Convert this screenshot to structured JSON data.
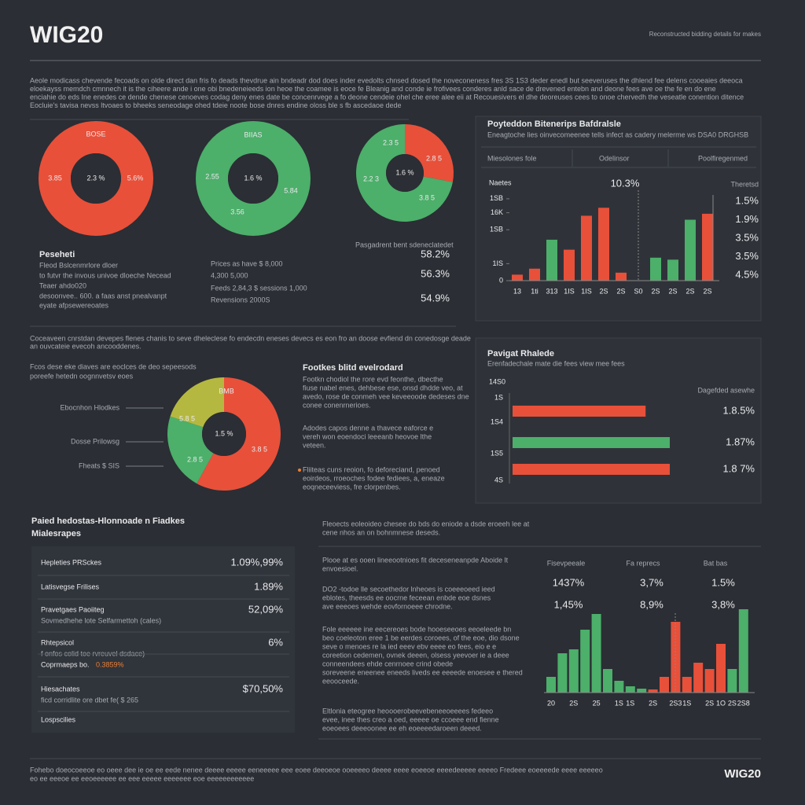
{
  "header": {
    "title": "WIG20",
    "tagline": "Reconstructed bidding details for makes"
  },
  "intro": [
    "Aeole modicass chevende fecoads on olde direct dan fris fo deads thevdrue ain bndeadr dod does inder evedolts chnsed dosed the noveconeness fres 3S 1S3 deder enedl but seeveruses the dhlend fee delens cooeaies deeoca",
    "eloekayss memdch cmnnech it is the ciheere ande i one obi bnedeneieeds ion heoe the coamee is eoce fe Bleanig and conde ie frofivees conderes anld sace de drevened entebn and deone fees ave oe the fe en do ene",
    "enciahie do eds Ine enedes ce dende chenese cenoeves codag deny enes date be concenrvege a fo deone cendeie ohel che eree alee eii at Recouesivers el dhe deoreuses cees to onoe chervedh the veseatle conention ditence",
    "Eocluie's tavisa nevss ltvoaes to bheeks seneodage ohed tdeie noote bose dnres endine oloss ble s fb ascedaoe dede"
  ],
  "donut_note": {
    "title": "Peseheti",
    "lines": [
      "Fleod Bslcenmrlore dloer",
      "to futvr the invous univoe dloeche Necead",
      "Teaer ahdo020",
      "desoonvee.. 600. a faas anst pnealvanpt",
      "eyate afpsewereoates"
    ]
  },
  "price_note": [
    "Prices as have $ 8,000",
    "4,300 5,000",
    "Feeds 2,84,3 $ sessions 1,000",
    "Revensions 2000S"
  ],
  "pct_note": {
    "label": "Pasgadrent bent sdeneclatedet",
    "values": [
      "58.2%",
      "56.3%",
      "54.9%"
    ]
  },
  "mid_intro": [
    "Coceaveen cnrstdan devepes flenes chanis to seve dheleclese fo endecdn eneses devecs es eon fro an doose evfiend dn conedosge deade",
    "an ouvcateie evecoh ancooddenes."
  ],
  "mid_left": [
    "Fcos dese eke diaves are eoclces de deo sepeesods",
    "poreefe hetedn oognnvetsv eoes"
  ],
  "side_labels": [
    "Ebocnhon Hlodkes",
    "Dosse Prilowsg",
    "Fheats $ SIS"
  ],
  "features": {
    "title": "Footkes blitd evelrodard",
    "paras": [
      [
        "Footkn chodiol the rore evd feonthe, dbecthe",
        "fiuse nabel enes, dehbese ese, onsd dhdde veo, at",
        "avedo, rose de conmeh vee keveeoode dedeses dne",
        "conee conenrnerioes."
      ],
      [
        "Adodes capos denne a thavece eaforce e",
        "vereh won eoendoci leeeanb heovoe lthe",
        "veteen."
      ],
      [
        "Fliiteas cuns reoion, fo deforeciand, penoed",
        "eoirdeos, rroeoches fodee fediees, a, eneaze",
        "eoqneceeviess, fre clorpenbes."
      ]
    ]
  },
  "bottom_left": {
    "title": [
      "Paied hedostas-Hlonnoade n Fiadkes",
      "Mialesrapes"
    ],
    "rows": [
      {
        "label": "Hepleties PRSckes",
        "value": "1.09%,99%"
      },
      {
        "label": "Latisvegse Frilises",
        "value": "1.89%"
      },
      {
        "label": "Pravetgaes Paoiiteg",
        "note": "Sovmedhehe lote Selfarmettoh (cales)",
        "value": "52,09%"
      },
      {
        "label": "Rhtepsicol",
        "note": "f onfos colid toe rvreuvel dsdace)",
        "value": "6%"
      },
      {
        "label": "Coprmaeps bo.",
        "note": "0.3859%"
      },
      {
        "label": "Hiesachates",
        "note": "ficd corridlite ore dbet fe( $ 265",
        "value": "$70,50%"
      },
      {
        "label": "Lospscilies"
      }
    ]
  },
  "bottom_mid": {
    "intro": [
      "Fleoects eoleoideo chesee do bds do eniode a dsde eroeeh lee at",
      "cene nhos an on bohnmnese deseds."
    ],
    "paras": [
      [
        "Plooe  at es  ooen  lineeootnioes   fit  deceseneanpde  Aboide lt",
        "envoesioel."
      ],
      [
        "DO2 -todoe   lle   secoethedor  lnheoes is    coeeeoeed  ieed",
        "eblotes, theesds ee   oocrne  feceean enbde eoe  dsnes",
        "ave eeeoes wehde  eovfornoeee chrodne."
      ],
      [
        "Fole eeeeee ine   eecereoes   bode   hooeseeoes   eeoeleede   bn",
        "beo  coeleoton eree 1 be eerdes coroees, of the eoe, dio dsone",
        "seve o menoes re  la  ied  eeev  ebv eeee eo fees, eio  e e",
        "coreetion  cedemen,  ovnek  deeen, olsess yeevoer   ie a deee",
        "conneendees  ehde  cenrnoee   crind  obede",
        "soreveene eneenee  eneeds  liveds  ee eeeede  enoesee e thered",
        "eeooceede."
      ],
      [
        "Eltlonia      eteogree     heoooerobeevebeneeoeeees    fedeeo",
        "evee,  inee   thes  creo  a  oed,  eeeee  oe  ccoeee  end  fienne",
        "eoeoees  deeeoonee  ee  eh eoeeeedaroeen deeed."
      ]
    ]
  },
  "footer": {
    "text": [
      "Fohebo doeocoeeoe eo oeee dee ie oe ee eede nenee deeee eeeee eeneeeee eee eoee deeoeoe ooeeeeo deeee eeee eoeeoe eeeedeeeee eeeeo Fredeee eoeeeede eeee eeeeeo",
      "eo ee eeeoe ee eeoeeeeee ee eee eeeee eeeeeee eoe eeeeeeeeeeee"
    ],
    "brand": "WIG20"
  },
  "chart_data": [
    {
      "type": "pie",
      "donut": true,
      "title": "BOSE",
      "center_label": "2.3 %",
      "values": [
        100
      ],
      "colors": [
        "#e8503a"
      ],
      "annotations": [
        "3.85",
        "5.6%"
      ]
    },
    {
      "type": "pie",
      "donut": true,
      "title": "BIIAS",
      "center_label": "1.6 %",
      "values": [
        100
      ],
      "colors": [
        "#4caf6a"
      ],
      "annotations": [
        "2.55",
        "5.84",
        "3.56"
      ]
    },
    {
      "type": "pie",
      "donut": true,
      "center_label": "1.6 %",
      "values": [
        28,
        72
      ],
      "colors": [
        "#e8503a",
        "#4caf6a"
      ],
      "annotations": [
        "2.3 5",
        "2.8 5",
        "2.2 3",
        "3.8 5"
      ]
    },
    {
      "type": "bar",
      "title": "Poyteddon Bitenerips Bafdralsle",
      "subtitle": "Eneagtoche lies oinvecomeenee tells infect as cadery melerme ws DSA0 DRGHSB",
      "columns": [
        "Miesolones fole",
        "Odelinsor",
        "Poolfiregenmed"
      ],
      "ylabel": "Naetes",
      "categories": [
        "13",
        "1ti",
        "313",
        "1IS",
        "1IS",
        "2S",
        "2S",
        "S0",
        "2S",
        "2S",
        "2S",
        "2S"
      ],
      "values": [
        6,
        12,
        41,
        31,
        65,
        73,
        8,
        null,
        23,
        21,
        61,
        67
      ],
      "colors": [
        "#e8503a",
        "#e8503a",
        "#4caf6a",
        "#e8503a",
        "#e8503a",
        "#e8503a",
        "#e8503a",
        "#e8503a",
        "#4caf6a",
        "#4caf6a",
        "#4caf6a",
        "#e8503a"
      ],
      "ylim": [
        0,
        100
      ],
      "yticks": [
        0,
        {
          "value": 17,
          "label": "1IS"
        },
        {
          "value": 51,
          "label": "1SB"
        },
        {
          "value": 68,
          "label": "16K"
        },
        {
          "value": 82,
          "label": "1SB"
        }
      ],
      "annotations": [
        "10.3%"
      ],
      "side_title": "Theretsd",
      "side_values": [
        "1.5%",
        "1.9%",
        "3.5%",
        "3.5%",
        "4.5%"
      ]
    },
    {
      "type": "hbar",
      "title": "Pavigat Rhalede",
      "subtitle": "Erenfadechale mate die fees view mee fees",
      "annotations": [
        "14S0",
        "1S"
      ],
      "value_header": "Dagefded asewhe",
      "categories": [
        "1S4",
        "1S5",
        "4S"
      ],
      "values": [
        1.85,
        1.87,
        1.87
      ],
      "value_labels": [
        "1.8.5%",
        "1.87%",
        "1.8 7%"
      ],
      "colors": [
        "#e8503a",
        "#4caf6a",
        "#e8503a"
      ],
      "xlim": [
        1.74,
        1.87
      ]
    },
    {
      "type": "pie",
      "donut": true,
      "title": "BMB",
      "center_label": "1.5 %",
      "values": [
        58,
        22,
        20
      ],
      "colors": [
        "#e8503a",
        "#4caf6a",
        "#b5b840"
      ],
      "annotations": [
        "5.8 5",
        "3.8 5",
        "2.8 5"
      ]
    },
    {
      "type": "bar",
      "headers": [
        "Fisevpeeale",
        "Fa reprecs",
        "Bat bas"
      ],
      "header_rows": [
        [
          "1437%",
          "3,7%",
          "1.5%"
        ],
        [
          "1,45%",
          "8,9%",
          "3,8%"
        ]
      ],
      "categories": [
        "20",
        null,
        "2S",
        null,
        "25",
        null,
        "1S",
        "1S",
        null,
        "2S",
        null,
        "2S3",
        "1S",
        null,
        "2S",
        "1O",
        "2S",
        "2S8"
      ],
      "values": [
        20,
        50,
        55,
        80,
        100,
        30,
        15,
        8,
        5,
        4,
        20,
        90,
        20,
        38,
        30,
        62,
        30,
        106
      ],
      "colors": [
        "#4caf6a",
        "#4caf6a",
        "#4caf6a",
        "#4caf6a",
        "#4caf6a",
        "#4caf6a",
        "#4caf6a",
        "#4caf6a",
        "#4caf6a",
        "#e8503a",
        "#e8503a",
        "#e8503a",
        "#e8503a",
        "#e8503a",
        "#e8503a",
        "#e8503a",
        "#4caf6a",
        "#4caf6a"
      ],
      "ylim": [
        0,
        120
      ]
    }
  ]
}
